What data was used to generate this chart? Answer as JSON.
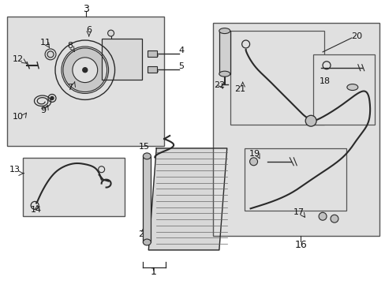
{
  "bg_color": "#ffffff",
  "diagram_bg": "#e0e0e0",
  "line_color": "#2a2a2a",
  "box_color": "#555555",
  "text_color": "#111111",
  "fig_width": 4.89,
  "fig_height": 3.6,
  "dpi": 100
}
